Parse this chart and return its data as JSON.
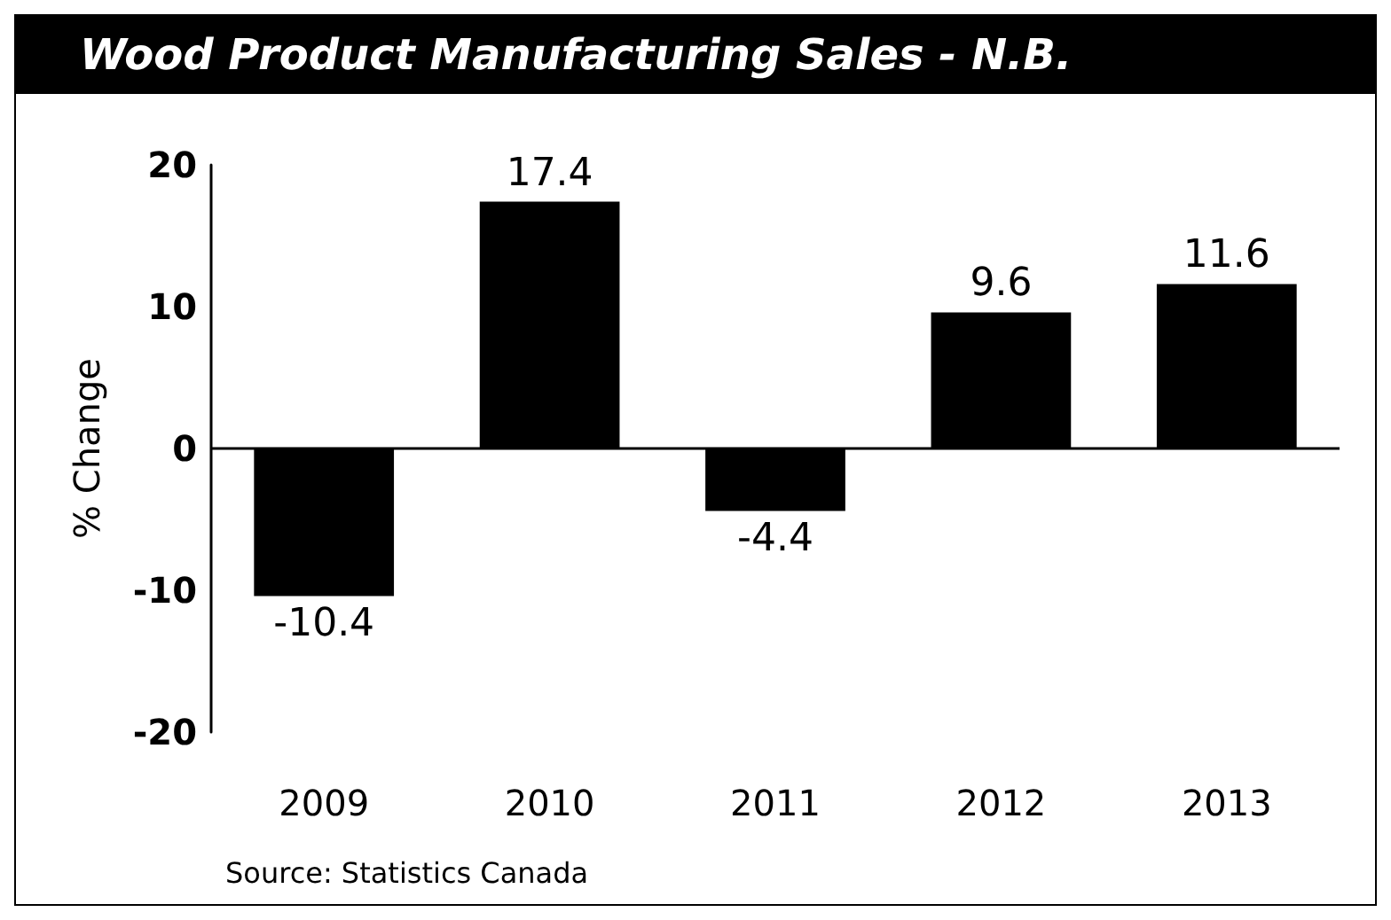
{
  "chart_data": {
    "type": "bar",
    "title": "Wood Product Manufacturing Sales - N.B.",
    "ylabel": "% Change",
    "categories": [
      "2009",
      "2010",
      "2011",
      "2012",
      "2013"
    ],
    "values": [
      -10.4,
      17.4,
      -4.4,
      9.6,
      11.6
    ],
    "color": "#000000",
    "ylim": [
      -20,
      20
    ],
    "yticks": [
      -20,
      -10,
      0,
      10,
      20
    ],
    "grid": false,
    "data_labels": true,
    "ref_lines": [
      {
        "axis": "y",
        "value": 0,
        "color": "#000000"
      }
    ],
    "annotations": [
      "Source: Statistics Canada"
    ]
  }
}
